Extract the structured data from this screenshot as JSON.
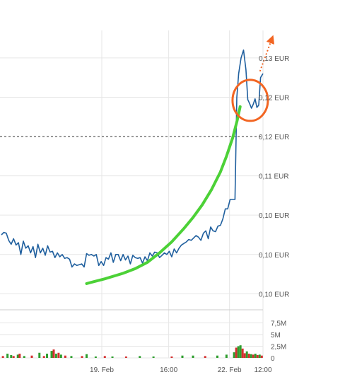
{
  "chart_data": {
    "type": "line",
    "title": "",
    "xlabel": "",
    "ylabel": "",
    "y_tick_labels": [
      "0,13 EUR",
      "0,12 EUR",
      "0,12 EUR",
      "0,11 EUR",
      "0,10 EUR",
      "0,10 EUR",
      "0,10 EUR"
    ],
    "y_tick_values": [
      0.13,
      0.125,
      0.12,
      0.115,
      0.11,
      0.105,
      0.1
    ],
    "ylim": [
      0.0985,
      0.1335
    ],
    "x_tick_labels": [
      "19. Feb",
      "16:00",
      "22. Feb",
      "12:00"
    ],
    "x_tick_values": [
      33,
      55,
      75,
      86
    ],
    "xlim": [
      0,
      86
    ],
    "reference_line": {
      "value": 0.12,
      "style": "dashed",
      "color": "#333333"
    },
    "grid": true,
    "series": [
      {
        "values": [
          [
            0.0,
            0.1075
          ],
          [
            0.8,
            0.1078
          ],
          [
            1.6,
            0.1077
          ],
          [
            2.4,
            0.1068
          ],
          [
            3.2,
            0.1063
          ],
          [
            4.0,
            0.107
          ],
          [
            4.8,
            0.1062
          ],
          [
            5.6,
            0.1065
          ],
          [
            6.4,
            0.105
          ],
          [
            7.2,
            0.1067
          ],
          [
            8.0,
            0.1058
          ],
          [
            8.8,
            0.1061
          ],
          [
            9.6,
            0.1052
          ],
          [
            10.4,
            0.106
          ],
          [
            11.2,
            0.1046
          ],
          [
            12.0,
            0.1063
          ],
          [
            12.8,
            0.1052
          ],
          [
            13.6,
            0.1058
          ],
          [
            14.4,
            0.1049
          ],
          [
            15.2,
            0.1061
          ],
          [
            16.0,
            0.1053
          ],
          [
            16.8,
            0.1054
          ],
          [
            17.6,
            0.1046
          ],
          [
            18.4,
            0.1052
          ],
          [
            19.2,
            0.1047
          ],
          [
            20.0,
            0.105
          ],
          [
            20.8,
            0.1045
          ],
          [
            21.6,
            0.1046
          ],
          [
            22.4,
            0.1044
          ],
          [
            23.2,
            0.1034
          ],
          [
            24.0,
            0.1038
          ],
          [
            24.8,
            0.1036
          ],
          [
            25.6,
            0.1037
          ],
          [
            26.4,
            0.1038
          ],
          [
            27.2,
            0.1034
          ],
          [
            28.0,
            0.1051
          ],
          [
            28.8,
            0.1049
          ],
          [
            29.6,
            0.105
          ],
          [
            30.4,
            0.1048
          ],
          [
            31.2,
            0.105
          ],
          [
            32.0,
            0.1036
          ],
          [
            32.8,
            0.1041
          ],
          [
            33.6,
            0.1036
          ],
          [
            34.4,
            0.1046
          ],
          [
            35.2,
            0.1044
          ],
          [
            36.0,
            0.1052
          ],
          [
            36.8,
            0.104
          ],
          [
            37.6,
            0.105
          ],
          [
            38.4,
            0.105
          ],
          [
            39.2,
            0.1042
          ],
          [
            40.0,
            0.105
          ],
          [
            40.8,
            0.1043
          ],
          [
            41.6,
            0.1048
          ],
          [
            42.4,
            0.1038
          ],
          [
            43.2,
            0.1049
          ],
          [
            44.0,
            0.1046
          ],
          [
            44.8,
            0.1045
          ],
          [
            45.6,
            0.1046
          ],
          [
            46.4,
            0.1039
          ],
          [
            47.2,
            0.1047
          ],
          [
            48.0,
            0.1042
          ],
          [
            48.8,
            0.1052
          ],
          [
            49.6,
            0.1048
          ],
          [
            50.4,
            0.1053
          ],
          [
            51.2,
            0.1052
          ],
          [
            52.0,
            0.1046
          ],
          [
            52.8,
            0.1049
          ],
          [
            53.6,
            0.1052
          ],
          [
            54.4,
            0.105
          ],
          [
            55.2,
            0.1054
          ],
          [
            56.0,
            0.1047
          ],
          [
            56.8,
            0.1057
          ],
          [
            57.6,
            0.1052
          ],
          [
            58.4,
            0.1058
          ],
          [
            59.2,
            0.1062
          ],
          [
            60.0,
            0.1064
          ],
          [
            60.8,
            0.1066
          ],
          [
            61.6,
            0.1069
          ],
          [
            62.4,
            0.1068
          ],
          [
            63.2,
            0.1071
          ],
          [
            64.0,
            0.1074
          ],
          [
            64.8,
            0.1072
          ],
          [
            65.6,
            0.1068
          ],
          [
            66.4,
            0.1077
          ],
          [
            67.2,
            0.108
          ],
          [
            68.0,
            0.107
          ],
          [
            68.8,
            0.1085
          ],
          [
            69.6,
            0.108
          ],
          [
            70.4,
            0.1079
          ],
          [
            71.2,
            0.1086
          ],
          [
            72.0,
            0.1087
          ],
          [
            72.8,
            0.1095
          ],
          [
            73.6,
            0.1108
          ],
          [
            74.4,
            0.1108
          ],
          [
            75.2,
            0.112
          ],
          [
            76.0,
            0.112
          ],
          [
            76.8,
            0.112
          ],
          [
            77.4,
            0.125
          ],
          [
            78.0,
            0.128
          ],
          [
            78.8,
            0.13
          ],
          [
            79.6,
            0.131
          ],
          [
            80.4,
            0.1285
          ],
          [
            81.0,
            0.1247
          ],
          [
            81.6,
            0.1242
          ],
          [
            82.2,
            0.1236
          ],
          [
            82.8,
            0.1241
          ],
          [
            83.4,
            0.1248
          ],
          [
            84.0,
            0.1237
          ],
          [
            84.6,
            0.124
          ],
          [
            85.2,
            0.1275
          ],
          [
            86.0,
            0.128
          ]
        ]
      }
    ],
    "volume": {
      "y_tick_labels": [
        "7,5M",
        "5M",
        "2,5M",
        "0"
      ],
      "y_tick_values": [
        7.5,
        5,
        2.5,
        0
      ],
      "ylim": [
        0,
        10
      ],
      "bars": [
        {
          "x": 0.5,
          "v": 0.4,
          "color": "#d32f2f"
        },
        {
          "x": 2.0,
          "v": 0.9,
          "color": "#2e9e2e"
        },
        {
          "x": 3.2,
          "v": 0.6,
          "color": "#2e9e2e"
        },
        {
          "x": 4.0,
          "v": 0.4,
          "color": "#d32f2f"
        },
        {
          "x": 5.4,
          "v": 0.7,
          "color": "#2e9e2e"
        },
        {
          "x": 6.0,
          "v": 0.9,
          "color": "#d32f2f"
        },
        {
          "x": 7.5,
          "v": 0.4,
          "color": "#2e9e2e"
        },
        {
          "x": 10.0,
          "v": 0.5,
          "color": "#d32f2f"
        },
        {
          "x": 12.5,
          "v": 1.1,
          "color": "#2e9e2e"
        },
        {
          "x": 14.0,
          "v": 0.4,
          "color": "#d32f2f"
        },
        {
          "x": 15.0,
          "v": 0.9,
          "color": "#2e9e2e"
        },
        {
          "x": 16.5,
          "v": 1.5,
          "color": "#2e9e2e"
        },
        {
          "x": 17.2,
          "v": 1.8,
          "color": "#d32f2f"
        },
        {
          "x": 18.0,
          "v": 0.9,
          "color": "#2e9e2e"
        },
        {
          "x": 18.8,
          "v": 1.1,
          "color": "#d32f2f"
        },
        {
          "x": 19.6,
          "v": 0.7,
          "color": "#2e9e2e"
        },
        {
          "x": 21.0,
          "v": 0.5,
          "color": "#d32f2f"
        },
        {
          "x": 23.0,
          "v": 0.4,
          "color": "#2e9e2e"
        },
        {
          "x": 26.5,
          "v": 0.4,
          "color": "#d32f2f"
        },
        {
          "x": 28.0,
          "v": 0.8,
          "color": "#2e9e2e"
        },
        {
          "x": 31.0,
          "v": 0.3,
          "color": "#2e9e2e"
        },
        {
          "x": 34.0,
          "v": 0.4,
          "color": "#d32f2f"
        },
        {
          "x": 36.5,
          "v": 0.3,
          "color": "#2e9e2e"
        },
        {
          "x": 41.0,
          "v": 0.3,
          "color": "#d32f2f"
        },
        {
          "x": 45.5,
          "v": 0.4,
          "color": "#2e9e2e"
        },
        {
          "x": 50.0,
          "v": 0.3,
          "color": "#2e9e2e"
        },
        {
          "x": 56.0,
          "v": 0.3,
          "color": "#d32f2f"
        },
        {
          "x": 59.5,
          "v": 0.5,
          "color": "#2e9e2e"
        },
        {
          "x": 63.0,
          "v": 0.5,
          "color": "#2e9e2e"
        },
        {
          "x": 67.0,
          "v": 0.4,
          "color": "#d32f2f"
        },
        {
          "x": 71.0,
          "v": 0.5,
          "color": "#2e9e2e"
        },
        {
          "x": 74.0,
          "v": 0.7,
          "color": "#2e9e2e"
        },
        {
          "x": 76.5,
          "v": 1.2,
          "color": "#2e9e2e"
        },
        {
          "x": 77.2,
          "v": 2.2,
          "color": "#d32f2f"
        },
        {
          "x": 77.9,
          "v": 2.5,
          "color": "#2e9e2e"
        },
        {
          "x": 78.6,
          "v": 2.7,
          "color": "#2e9e2e"
        },
        {
          "x": 79.3,
          "v": 2.0,
          "color": "#d32f2f"
        },
        {
          "x": 80.0,
          "v": 1.0,
          "color": "#d32f2f"
        },
        {
          "x": 80.7,
          "v": 1.4,
          "color": "#2e9e2e"
        },
        {
          "x": 81.4,
          "v": 0.9,
          "color": "#d32f2f"
        },
        {
          "x": 82.1,
          "v": 0.8,
          "color": "#2e9e2e"
        },
        {
          "x": 82.8,
          "v": 0.7,
          "color": "#d32f2f"
        },
        {
          "x": 83.5,
          "v": 0.9,
          "color": "#2e9e2e"
        },
        {
          "x": 84.2,
          "v": 0.6,
          "color": "#d32f2f"
        },
        {
          "x": 84.9,
          "v": 0.7,
          "color": "#2e9e2e"
        },
        {
          "x": 85.6,
          "v": 0.5,
          "color": "#d32f2f"
        }
      ]
    },
    "annotations": [
      {
        "type": "trend-curve",
        "color": "#4cd137",
        "points": [
          [
            28.0,
            0.1013
          ],
          [
            34.0,
            0.1019
          ],
          [
            40.0,
            0.1026
          ],
          [
            44.0,
            0.1032
          ],
          [
            48.0,
            0.104
          ],
          [
            52.0,
            0.1052
          ],
          [
            56.0,
            0.1066
          ],
          [
            60.0,
            0.1083
          ],
          [
            63.0,
            0.1097
          ],
          [
            66.0,
            0.1113
          ],
          [
            69.0,
            0.1132
          ],
          [
            72.0,
            0.1155
          ],
          [
            74.0,
            0.1175
          ],
          [
            76.0,
            0.1198
          ],
          [
            77.5,
            0.122
          ],
          [
            78.5,
            0.1238
          ]
        ]
      },
      {
        "type": "circle",
        "color": "#f26522",
        "x": 81.8,
        "y": 0.1246
      },
      {
        "type": "dotted-arrow",
        "color": "#f26522",
        "from": [
          85.0,
          0.1283
        ],
        "to": [
          89.0,
          0.1325
        ]
      }
    ],
    "colors": {
      "line": "#1f5f9e",
      "grid": "#e6e6e6"
    }
  }
}
